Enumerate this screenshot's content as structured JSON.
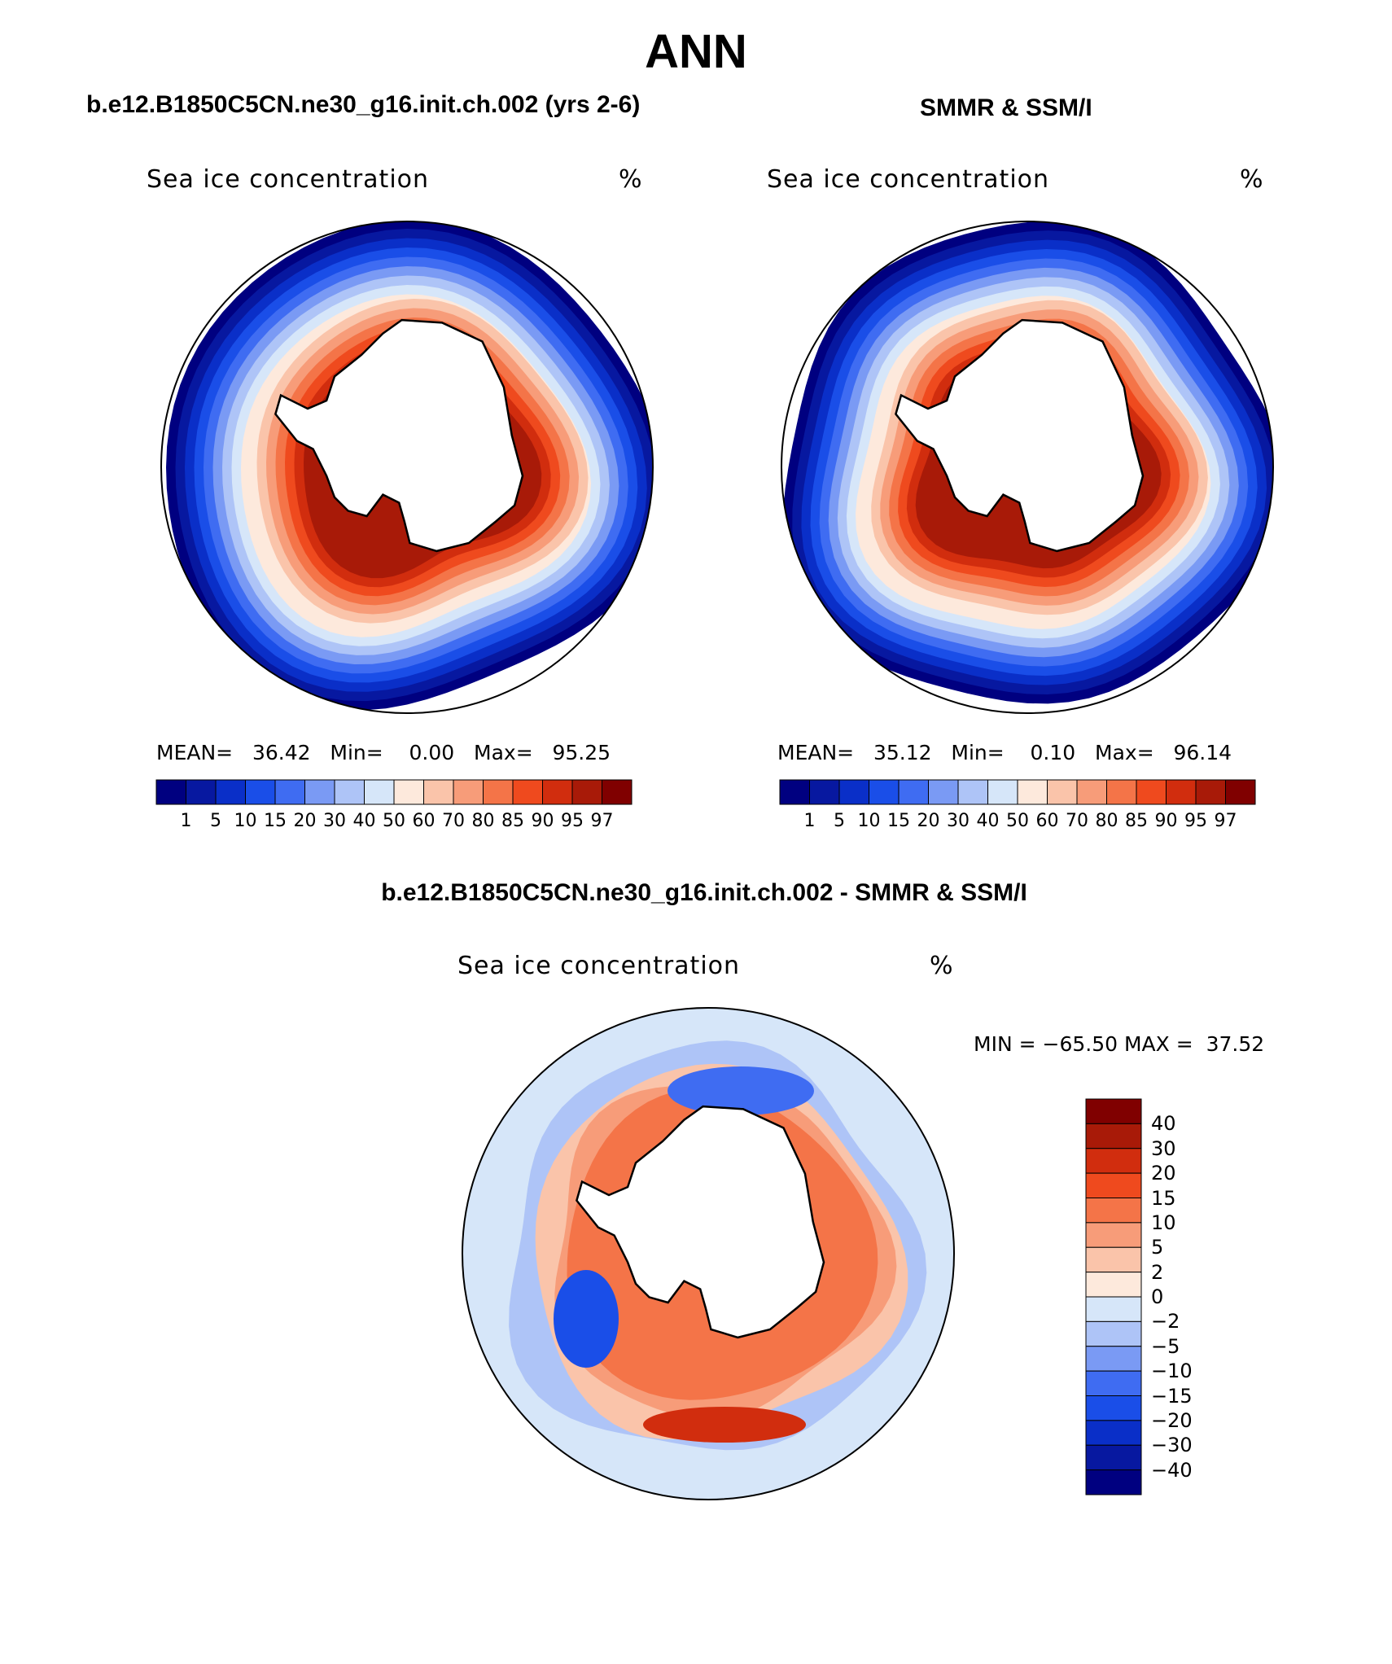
{
  "figure": {
    "title": "ANN"
  },
  "panels": {
    "model": {
      "heading": "b.e12.B1850C5CN.ne30_g16.init.ch.002 (yrs 2-6)",
      "variable": "Sea ice concentration",
      "units": "%",
      "mean_label": "MEAN=",
      "mean_value": "36.42",
      "min_label": "Min=",
      "min_value": "0.00",
      "max_label": "Max=",
      "max_value": "95.25"
    },
    "obs": {
      "heading": "SMMR & SSM/I",
      "variable": "Sea ice concentration",
      "units": "%",
      "mean_label": "MEAN=",
      "mean_value": "35.12",
      "min_label": "Min=",
      "min_value": "0.10",
      "max_label": "Max=",
      "max_value": "96.14"
    },
    "diff": {
      "heading": "b.e12.B1850C5CN.ne30_g16.init.ch.002 - SMMR & SSM/I",
      "variable": "Sea ice concentration",
      "units": "%",
      "min_label": "MIN =",
      "min_value": "−65.50",
      "max_label": "MAX =",
      "max_value": "37.52"
    }
  },
  "colorbars": {
    "concentration": {
      "labels": [
        "1",
        "5",
        "10",
        "15",
        "20",
        "30",
        "40",
        "50",
        "60",
        "70",
        "80",
        "85",
        "90",
        "95",
        "97"
      ],
      "colors": [
        "#000080",
        "#0718a0",
        "#0a2fc8",
        "#1a4ee8",
        "#3f6cf2",
        "#7a9af4",
        "#aec4f7",
        "#d6e6f9",
        "#fde9dc",
        "#fac4aa",
        "#f79c79",
        "#f47448",
        "#ef4a1e",
        "#d12d0e",
        "#a81a08",
        "#800000"
      ]
    },
    "difference": {
      "labels": [
        "40",
        "30",
        "20",
        "15",
        "10",
        "5",
        "2",
        "0",
        "−2",
        "−5",
        "−10",
        "−15",
        "−20",
        "−30",
        "−40"
      ],
      "colors": [
        "#800000",
        "#a81a08",
        "#d12d0e",
        "#ef4a1e",
        "#f47448",
        "#f79c79",
        "#fac4aa",
        "#fde9dc",
        "#d6e6f9",
        "#aec4f7",
        "#7a9af4",
        "#3f6cf2",
        "#1a4ee8",
        "#0a2fc8",
        "#0718a0",
        "#000080"
      ]
    }
  },
  "map_colors": {
    "land": "#ffffff",
    "coast": "#000000",
    "ocean_edge": "#ffffff"
  }
}
